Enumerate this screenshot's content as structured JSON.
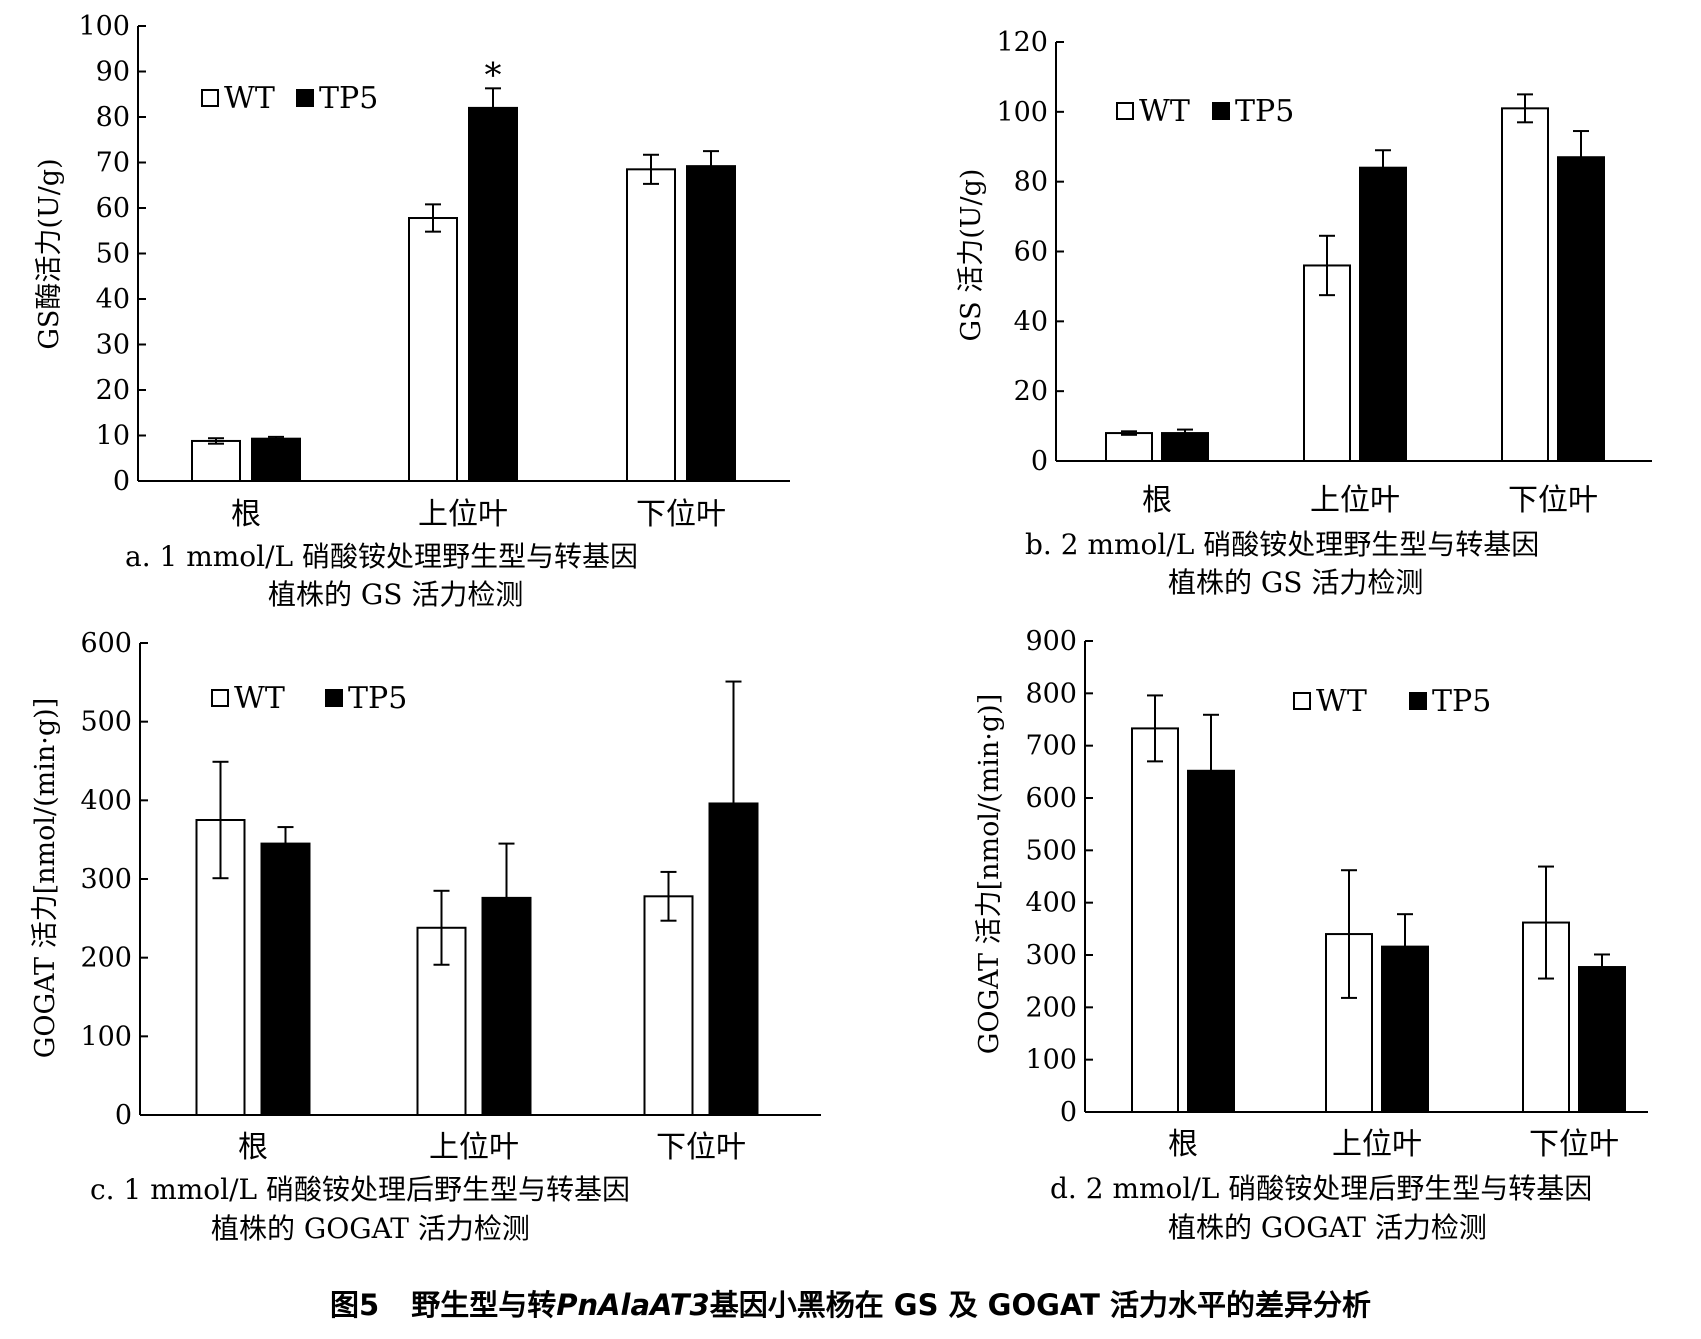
{
  "chart_data": [
    {
      "type": "bar",
      "panel": "a",
      "ylabel": "GS酶活力(U/g)",
      "categories": [
        "根",
        "上位叶",
        "下位叶"
      ],
      "yticks": [
        0,
        10,
        20,
        30,
        40,
        50,
        60,
        70,
        80,
        90,
        100
      ],
      "ylim": [
        0,
        100
      ],
      "legend": "top-left",
      "series": [
        {
          "name": "WT",
          "fill": "#ffffff",
          "values": [
            8.8,
            57.8,
            68.5
          ],
          "errors": [
            0.6,
            3.0,
            3.2
          ]
        },
        {
          "name": "TP5",
          "fill": "#000000",
          "values": [
            9.3,
            82.0,
            69.2
          ],
          "errors": [
            0.4,
            4.3,
            3.3
          ]
        }
      ],
      "annotations": [
        {
          "text": "*",
          "series": 1,
          "category": 1
        }
      ],
      "caption": [
        "a. 1 mmol/L 硝酸铵处理野生型与转基因",
        "植株的 GS 活力检测"
      ]
    },
    {
      "type": "bar",
      "panel": "b",
      "ylabel": "GS 活力(U/g)",
      "categories": [
        "根",
        "上位叶",
        "下位叶"
      ],
      "yticks": [
        0,
        20,
        40,
        60,
        80,
        100,
        120
      ],
      "ylim": [
        0,
        120
      ],
      "legend": "top-left",
      "series": [
        {
          "name": "WT",
          "fill": "#ffffff",
          "values": [
            8.0,
            56.0,
            101.0
          ],
          "errors": [
            0.5,
            8.5,
            4.0
          ]
        },
        {
          "name": "TP5",
          "fill": "#000000",
          "values": [
            8.0,
            84.0,
            87.0
          ],
          "errors": [
            1.0,
            5.0,
            7.5
          ]
        }
      ],
      "annotations": [],
      "caption": [
        "b. 2 mmol/L 硝酸铵处理野生型与转基因",
        "植株的 GS 活力检测"
      ]
    },
    {
      "type": "bar",
      "panel": "c",
      "ylabel": "GOGAT 活力[nmol/(min·g)]",
      "categories": [
        "根",
        "上位叶",
        "下位叶"
      ],
      "yticks": [
        0,
        100,
        200,
        300,
        400,
        500,
        600
      ],
      "ylim": [
        0,
        600
      ],
      "legend": "top-left",
      "series": [
        {
          "name": "WT",
          "fill": "#ffffff",
          "values": [
            375,
            238,
            278
          ],
          "errors": [
            74,
            47,
            31
          ]
        },
        {
          "name": "TP5",
          "fill": "#000000",
          "values": [
            345,
            276,
            396
          ],
          "errors": [
            21,
            69,
            155
          ]
        }
      ],
      "annotations": [],
      "caption": [
        "c. 1 mmol/L 硝酸铵处理后野生型与转基因",
        "植株的 GOGAT 活力检测"
      ]
    },
    {
      "type": "bar",
      "panel": "d",
      "ylabel": "GOGAT 活力[nmol/(min·g)]",
      "categories": [
        "根",
        "上位叶",
        "下位叶"
      ],
      "yticks": [
        0,
        100,
        200,
        300,
        400,
        500,
        600,
        700,
        800,
        900
      ],
      "ylim": [
        0,
        900
      ],
      "legend": "top-right",
      "series": [
        {
          "name": "WT",
          "fill": "#ffffff",
          "values": [
            733,
            340,
            362
          ],
          "errors": [
            63,
            122,
            107
          ]
        },
        {
          "name": "TP5",
          "fill": "#000000",
          "values": [
            652,
            316,
            277
          ],
          "errors": [
            107,
            62,
            24
          ]
        }
      ],
      "annotations": [],
      "caption": [
        "d. 2 mmol/L 硝酸铵处理后野生型与转基因",
        "植株的 GOGAT 活力检测"
      ]
    }
  ],
  "figure_caption": {
    "label": "图5",
    "prefix": "野生型与转",
    "gene": "PnAlaAT3",
    "suffix": "基因小黑杨在 GS 及 GOGAT 活力水平的差异分析"
  }
}
